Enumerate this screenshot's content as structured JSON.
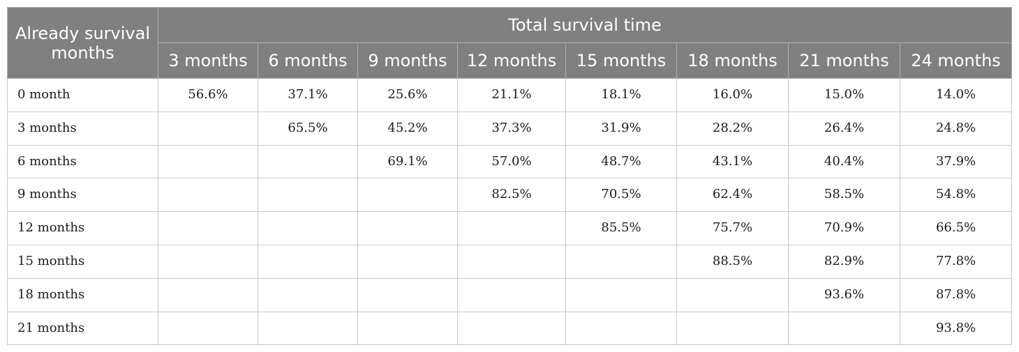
{
  "table": {
    "row_header": "Already survival months",
    "group_header": "Total survival time",
    "columns": [
      "3 months",
      "6 months",
      "9 months",
      "12 months",
      "15 months",
      "18 months",
      "21 months",
      "24 months"
    ],
    "rows": [
      {
        "label": "0 month",
        "cells": [
          "56.6%",
          "37.1%",
          "25.6%",
          "21.1%",
          "18.1%",
          "16.0%",
          "15.0%",
          "14.0%"
        ]
      },
      {
        "label": "3 months",
        "cells": [
          "",
          "65.5%",
          "45.2%",
          "37.3%",
          "31.9%",
          "28.2%",
          "26.4%",
          "24.8%"
        ]
      },
      {
        "label": "6 months",
        "cells": [
          "",
          "",
          "69.1%",
          "57.0%",
          "48.7%",
          "43.1%",
          "40.4%",
          "37.9%"
        ]
      },
      {
        "label": "9 months",
        "cells": [
          "",
          "",
          "",
          "82.5%",
          "70.5%",
          "62.4%",
          "58.5%",
          "54.8%"
        ]
      },
      {
        "label": "12 months",
        "cells": [
          "",
          "",
          "",
          "",
          "85.5%",
          "75.7%",
          "70.9%",
          "66.5%"
        ]
      },
      {
        "label": "15 months",
        "cells": [
          "",
          "",
          "",
          "",
          "",
          "88.5%",
          "82.9%",
          "77.8%"
        ]
      },
      {
        "label": "18 months",
        "cells": [
          "",
          "",
          "",
          "",
          "",
          "",
          "93.6%",
          "87.8%"
        ]
      },
      {
        "label": "21 months",
        "cells": [
          "",
          "",
          "",
          "",
          "",
          "",
          "",
          "93.8%"
        ]
      }
    ]
  },
  "colors": {
    "header_bg": "#7f807f",
    "header_text": "#ffffff",
    "grid": "#c8c8c8"
  }
}
